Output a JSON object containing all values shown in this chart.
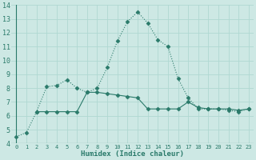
{
  "xlabel": "Humidex (Indice chaleur)",
  "bg_color": "#cde8e4",
  "grid_color": "#b0d8d2",
  "line_color": "#2a7a6a",
  "xlim": [
    -0.5,
    23.5
  ],
  "ylim": [
    4,
    14
  ],
  "x_ticks": [
    0,
    1,
    2,
    3,
    4,
    5,
    6,
    7,
    8,
    9,
    10,
    11,
    12,
    13,
    14,
    15,
    16,
    17,
    18,
    19,
    20,
    21,
    22,
    23
  ],
  "y_ticks": [
    4,
    5,
    6,
    7,
    8,
    9,
    10,
    11,
    12,
    13,
    14
  ],
  "line1_x": [
    0,
    1,
    2,
    3,
    4,
    5,
    6,
    7,
    8,
    9,
    10,
    11,
    12,
    13,
    14,
    15,
    16,
    17,
    18,
    19,
    20,
    21,
    22,
    23
  ],
  "line1_y": [
    4.5,
    4.8,
    6.3,
    8.1,
    8.2,
    8.6,
    8.0,
    7.7,
    8.0,
    9.5,
    11.4,
    12.8,
    13.5,
    12.7,
    11.5,
    11.0,
    8.7,
    7.3,
    6.5,
    6.5,
    6.5,
    6.4,
    6.3,
    6.5
  ],
  "line2_x": [
    2,
    3,
    4,
    5,
    6,
    7,
    8,
    9,
    10,
    11,
    12,
    13,
    14,
    15,
    16,
    17,
    18,
    19,
    20,
    21,
    22,
    23
  ],
  "line2_y": [
    6.3,
    6.3,
    6.3,
    6.3,
    6.3,
    7.7,
    7.7,
    7.6,
    7.5,
    7.4,
    7.3,
    6.5,
    6.5,
    6.5,
    6.5,
    7.0,
    6.6,
    6.5,
    6.5,
    6.5,
    6.4,
    6.5
  ]
}
